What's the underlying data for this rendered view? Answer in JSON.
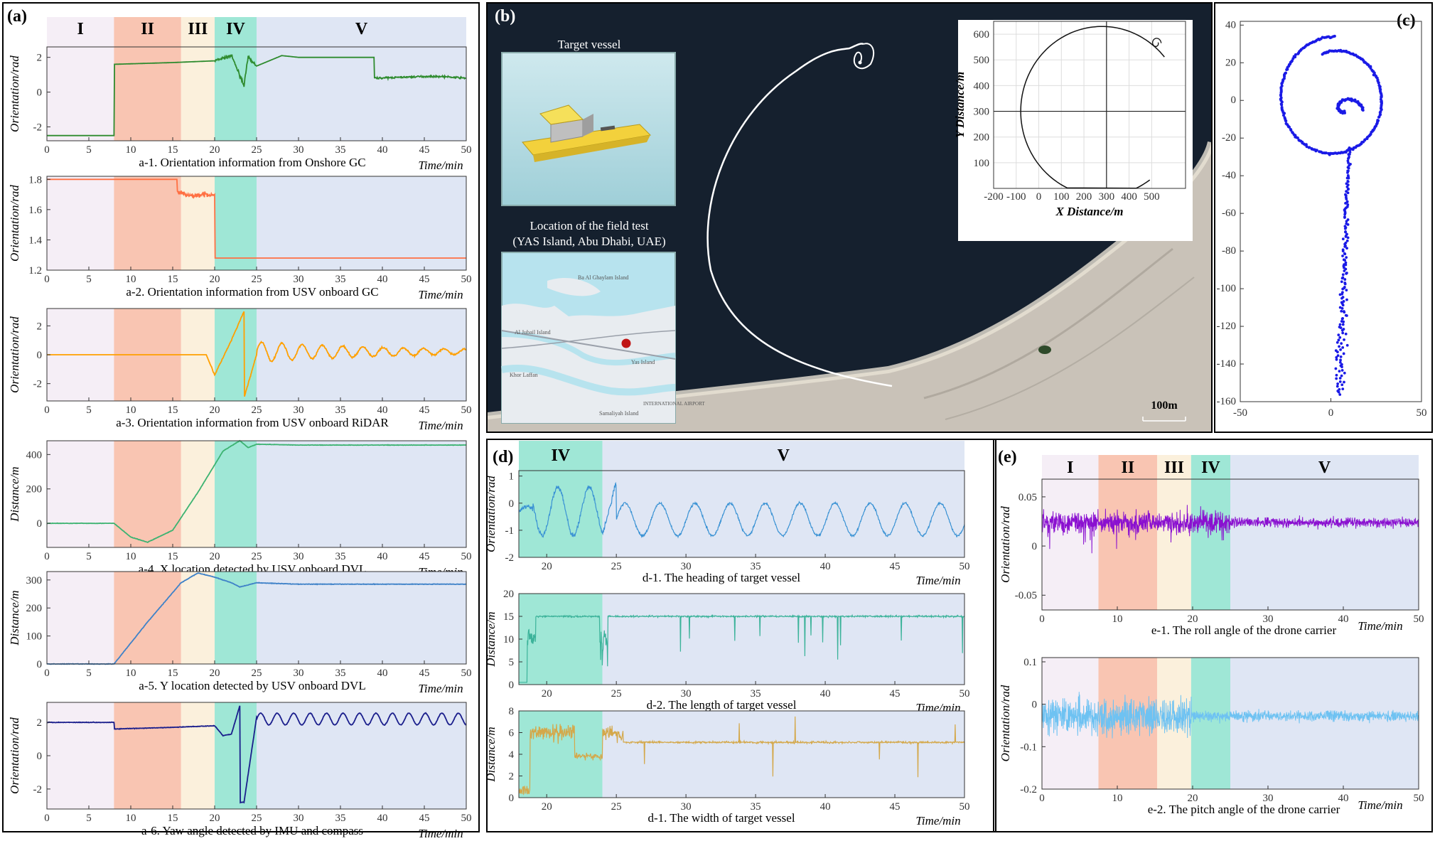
{
  "colors": {
    "phase_I": "#f5eef6",
    "phase_II": "#f9c5b2",
    "phase_III": "#fbf0dc",
    "phase_IV": "#9fe7d6",
    "phase_V": "#dfe6f4",
    "a1": "#2e8b2e",
    "a2": "#ff7043",
    "a3": "#ffa000",
    "a4": "#3cb371",
    "a5": "#3f82c8",
    "a6": "#1a1e8c",
    "d1": "#3a92d4",
    "d2": "#3cb39a",
    "d3": "#d4a84a",
    "e1": "#8a10d0",
    "e2": "#6ec2f2",
    "c": "#1a1ae6",
    "sea": "#15202e",
    "sand": "#cdc7bf",
    "track": "#ffffff"
  },
  "panels": {
    "a": {
      "label": "(a)",
      "phases": [
        {
          "name": "I",
          "from": 0,
          "to": 8
        },
        {
          "name": "II",
          "from": 8,
          "to": 16
        },
        {
          "name": "III",
          "from": 16,
          "to": 20
        },
        {
          "name": "IV",
          "from": 20,
          "to": 25
        },
        {
          "name": "V",
          "from": 25,
          "to": 50
        }
      ],
      "time_label": "Time/min",
      "xticks": [
        0,
        5,
        10,
        15,
        20,
        25,
        30,
        35,
        40,
        45,
        50
      ],
      "subplots": [
        {
          "id": "a1",
          "caption": "a-1. Orientation information from Onshore GC",
          "ylabel": "Orientation/rad",
          "yrange": [
            -2.8,
            2.6
          ],
          "yticks": [
            -2,
            0,
            2
          ],
          "yticklabels": [
            "-2",
            "0",
            "2"
          ]
        },
        {
          "id": "a2",
          "caption": "a-2. Orientation information from USV onboard GC",
          "ylabel": "Orientation/rad",
          "yrange": [
            1.2,
            1.82
          ],
          "yticks": [
            1.2,
            1.4,
            1.6,
            1.8
          ],
          "yticklabels": [
            "1.2",
            "1.4",
            "1.6",
            "1.8"
          ]
        },
        {
          "id": "a3",
          "caption": "a-3. Orientation information from USV onboard RiDAR",
          "ylabel": "Orientation/rad",
          "yrange": [
            -3.2,
            3.2
          ],
          "yticks": [
            -2,
            0,
            2
          ],
          "yticklabels": [
            "-2",
            "0",
            "2"
          ]
        },
        {
          "id": "a4",
          "caption": "a-4. X location detected by USV onboard DVL",
          "ylabel": "Distance/m",
          "yrange": [
            -140,
            480
          ],
          "yticks": [
            0,
            200,
            400
          ],
          "yticklabels": [
            "0",
            "200",
            "400"
          ]
        },
        {
          "id": "a5",
          "caption": "a-5. Y location detected by USV onboard DVL",
          "ylabel": "Distance/m",
          "yrange": [
            0,
            330
          ],
          "yticks": [
            0,
            100,
            200,
            300
          ],
          "yticklabels": [
            "0",
            "100",
            "200",
            "300"
          ]
        },
        {
          "id": "a6",
          "caption": "a-6. Yaw angle detected by IMU and compass",
          "ylabel": "Orientation/rad",
          "yrange": [
            -3.2,
            3.2
          ],
          "yticks": [
            -2,
            0,
            2
          ],
          "yticklabels": [
            "-2",
            "0",
            "2"
          ]
        }
      ]
    },
    "b": {
      "label": "(b)",
      "target_title": "Target vessel",
      "location_title": "Location of the field test",
      "location_subtitle": "(YAS Island, Abu Dhabi, UAE)",
      "map_labels": [
        "Ba Al Ghaylam Island",
        "Al Jubail Island",
        "Khor Laffan",
        "Yas Island",
        "Samaliyah Island",
        "INTERNATIONAL AIRPORT"
      ],
      "scale_bar": "100m",
      "inset": {
        "xlabel": "X Distance/m",
        "ylabel": "Y Distance/m",
        "xrange": [
          -200,
          650
        ],
        "yrange": [
          0,
          650
        ],
        "xticks": [
          -200,
          -100,
          0,
          100,
          200,
          300,
          400,
          500
        ],
        "yticks": [
          100,
          200,
          300,
          400,
          500,
          600
        ]
      }
    },
    "c": {
      "label": "(c)",
      "xrange": [
        -50,
        50
      ],
      "yrange": [
        -160,
        42
      ],
      "xticks": [
        -50,
        0,
        50
      ],
      "yticks": [
        40,
        20,
        0,
        -20,
        -40,
        -60,
        -80,
        -100,
        -120,
        -140,
        -160
      ]
    },
    "d": {
      "label": "(d)",
      "phases": [
        {
          "name": "IV",
          "from": 18,
          "to": 24
        },
        {
          "name": "V",
          "from": 24,
          "to": 50
        }
      ],
      "time_label": "Time/min",
      "xticks": [
        20,
        25,
        30,
        35,
        40,
        45,
        50
      ],
      "subplots": [
        {
          "id": "d1",
          "caption": "d-1. The heading of target vessel",
          "ylabel": "Orientation/rad",
          "yrange": [
            -2,
            1.2
          ],
          "yticks": [
            -2,
            -1,
            0,
            1
          ],
          "yticklabels": [
            "-2",
            "-1",
            "0",
            "1"
          ]
        },
        {
          "id": "d2",
          "caption": "d-2. The length of target vessel",
          "ylabel": "Distance/m",
          "yrange": [
            0,
            20
          ],
          "yticks": [
            0,
            5,
            10,
            15,
            20
          ],
          "yticklabels": [
            "0",
            "5",
            "10",
            "15",
            "20"
          ]
        },
        {
          "id": "d3",
          "caption": "d-1. The width of target vessel",
          "ylabel": "Distance/m",
          "yrange": [
            0,
            8
          ],
          "yticks": [
            0,
            2,
            4,
            6,
            8
          ],
          "yticklabels": [
            "0",
            "2",
            "4",
            "6",
            "8"
          ]
        }
      ]
    },
    "e": {
      "label": "(e)",
      "phases": [
        {
          "name": "I",
          "from": 0,
          "to": 7.5
        },
        {
          "name": "II",
          "from": 7.5,
          "to": 15.3
        },
        {
          "name": "III",
          "from": 15.3,
          "to": 19.8
        },
        {
          "name": "IV",
          "from": 19.8,
          "to": 25
        },
        {
          "name": "V",
          "from": 25,
          "to": 50
        }
      ],
      "time_label": "Time/min",
      "xticks": [
        0,
        10,
        20,
        30,
        40,
        50
      ],
      "subplots": [
        {
          "id": "e1",
          "caption": "e-1. The roll angle of the drone carrier",
          "ylabel": "Orientation/rad",
          "yrange": [
            -0.065,
            0.068
          ],
          "yticks": [
            -0.05,
            0,
            0.05
          ],
          "yticklabels": [
            "-0.05",
            "0",
            "0.05"
          ]
        },
        {
          "id": "e2",
          "caption": "e-2. The pitch angle of the drone carrier",
          "ylabel": "Orientation/rad",
          "yrange": [
            -0.2,
            0.11
          ],
          "yticks": [
            -0.2,
            -0.1,
            0,
            0.1
          ],
          "yticklabels": [
            "-0.2",
            "-0.1",
            "0",
            "0.1"
          ]
        }
      ]
    }
  },
  "chart_data": [
    {
      "type": "line",
      "panel": "a-1",
      "x": [
        0,
        8,
        8,
        15,
        20,
        22,
        23.5,
        24,
        25,
        28,
        30,
        39,
        39,
        45,
        47,
        50
      ],
      "values": [
        -2.5,
        -2.5,
        1.6,
        1.7,
        1.8,
        2.1,
        0.4,
        2.0,
        1.5,
        2.1,
        2.0,
        2.0,
        0.8,
        0.9,
        0.9,
        0.8
      ]
    },
    {
      "type": "line",
      "panel": "a-2",
      "x": [
        0,
        15.5,
        15.5,
        17,
        19,
        20,
        20,
        50
      ],
      "values": [
        1.8,
        1.8,
        1.72,
        1.69,
        1.7,
        1.7,
        1.28,
        1.28
      ]
    },
    {
      "type": "line",
      "panel": "a-3",
      "x": [
        0,
        19,
        20,
        22,
        23.5,
        23.5,
        25,
        27,
        30,
        50
      ],
      "values": [
        0,
        0,
        -1.4,
        1.0,
        3.0,
        -3.0,
        0,
        1.0,
        0.5,
        0
      ],
      "note_oscillation": "decaying sinusoid after 25 min, amplitude ~0.8"
    },
    {
      "type": "line",
      "panel": "a-4",
      "x": [
        0,
        8,
        10,
        12,
        15,
        18,
        21,
        23,
        24,
        25,
        30,
        50
      ],
      "values": [
        0,
        0,
        -80,
        -110,
        -40,
        180,
        420,
        480,
        440,
        460,
        455,
        455
      ]
    },
    {
      "type": "line",
      "panel": "a-5",
      "x": [
        0,
        8,
        12,
        16,
        18,
        20,
        22,
        23,
        25,
        30,
        50
      ],
      "values": [
        0,
        0,
        150,
        290,
        325,
        310,
        290,
        275,
        290,
        285,
        285
      ]
    },
    {
      "type": "line",
      "panel": "a-6",
      "x": [
        0,
        8,
        8,
        15,
        20,
        21,
        22,
        23,
        23,
        23.5,
        25,
        50
      ],
      "values": [
        2.0,
        2.0,
        1.6,
        1.7,
        1.8,
        1.2,
        1.3,
        3.0,
        -2.8,
        -2.8,
        2.3,
        2.2
      ],
      "note_oscillation": "sinusoid after 25 min, amplitude ~0.4"
    },
    {
      "type": "line",
      "panel": "b-inset",
      "x": [
        50,
        -100,
        -60,
        100,
        300,
        450,
        520,
        540,
        520,
        530
      ],
      "values": [
        0,
        350,
        480,
        600,
        630,
        590,
        580,
        560,
        540,
        570
      ]
    },
    {
      "type": "scatter",
      "panel": "c",
      "x": [
        0,
        -20,
        -30,
        -25,
        0,
        25,
        30,
        20,
        10,
        5,
        3,
        5,
        6,
        6
      ],
      "values": [
        35,
        28,
        0,
        -20,
        -25,
        -15,
        0,
        -30,
        -60,
        -90,
        -110,
        -130,
        -145,
        -155
      ]
    },
    {
      "type": "line",
      "panel": "d-1",
      "x": [
        18,
        19,
        20,
        21,
        22,
        23,
        24,
        25,
        50
      ],
      "values": [
        0,
        -0.5,
        1.0,
        -1.5,
        -0.5,
        -1.0,
        -1.5,
        0.8,
        -0.7
      ],
      "note_oscillation": "sinusoid period ~2.5 min, amplitude ~0.6"
    },
    {
      "type": "line",
      "panel": "d-2",
      "x": [
        18,
        19,
        20,
        24,
        25,
        50
      ],
      "values": [
        2,
        14,
        15,
        15,
        15,
        15
      ]
    },
    {
      "type": "line",
      "panel": "d-3",
      "x": [
        18,
        19,
        20,
        22,
        24,
        25,
        30,
        50
      ],
      "values": [
        0,
        6,
        7,
        4.5,
        3.5,
        6.5,
        5.2,
        5.0
      ]
    },
    {
      "type": "line",
      "panel": "e-1",
      "x": [
        0,
        25,
        50
      ],
      "values": [
        0.025,
        0.025,
        0.022
      ],
      "note_noise": "noise amplitude ~0.012 until 25 min, ~0.006 after"
    },
    {
      "type": "line",
      "panel": "e-2",
      "x": [
        0,
        20,
        50
      ],
      "values": [
        -0.03,
        -0.03,
        -0.02
      ],
      "note_noise": "noise amplitude ~0.05 until 20 min, ~0.015 after"
    }
  ]
}
